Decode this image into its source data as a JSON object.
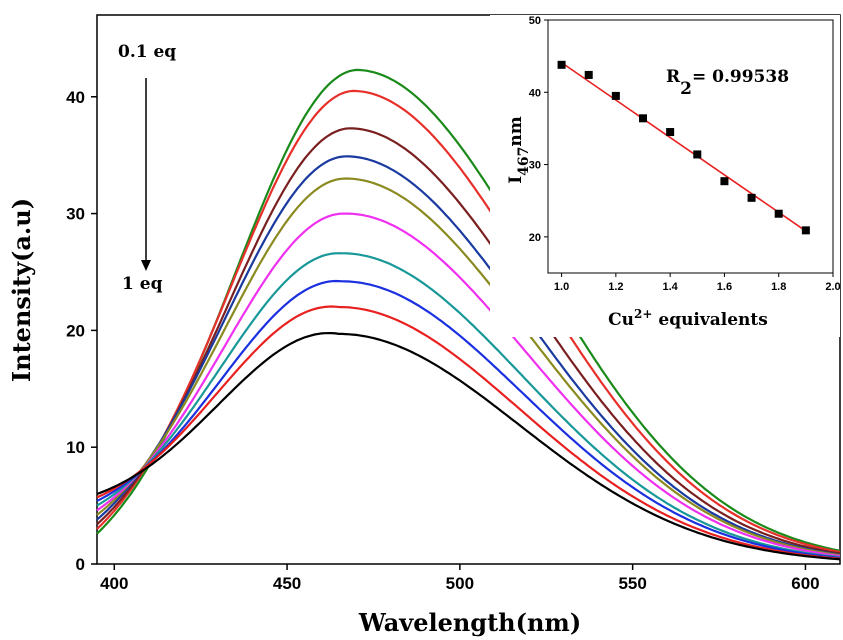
{
  "chart_data": [
    {
      "type": "line",
      "xlabel": "Wavelength(nm)",
      "ylabel": "Intensity(a.u)",
      "xlim": [
        395,
        610
      ],
      "ylim": [
        0,
        47
      ],
      "xticks": [
        400,
        450,
        500,
        550,
        600
      ],
      "yticks": [
        0,
        10,
        20,
        30,
        40
      ],
      "grid": false,
      "annotations": {
        "start": "0.1 eq",
        "end": "1 eq"
      },
      "series": [
        {
          "color": "#1a8a1a",
          "peak_x": 470,
          "peak_y": 42.3,
          "start_y": 2.6
        },
        {
          "color": "#e8302a",
          "peak_x": 469,
          "peak_y": 40.5,
          "start_y": 3.0
        },
        {
          "color": "#7a1f1f",
          "peak_x": 468,
          "peak_y": 37.3,
          "start_y": 3.4
        },
        {
          "color": "#1a3aa0",
          "peak_x": 467,
          "peak_y": 34.9,
          "start_y": 3.8
        },
        {
          "color": "#8a8a20",
          "peak_x": 467,
          "peak_y": 33.0,
          "start_y": 4.2
        },
        {
          "color": "#f030f0",
          "peak_x": 467,
          "peak_y": 30.0,
          "start_y": 4.6
        },
        {
          "color": "#189898",
          "peak_x": 466,
          "peak_y": 26.6,
          "start_y": 5.0
        },
        {
          "color": "#1a30e0",
          "peak_x": 466,
          "peak_y": 24.2,
          "start_y": 5.4
        },
        {
          "color": "#e82020",
          "peak_x": 465,
          "peak_y": 22.0,
          "start_y": 5.7
        },
        {
          "color": "#000000",
          "peak_x": 465,
          "peak_y": 19.7,
          "start_y": 6.0
        }
      ]
    },
    {
      "type": "scatter",
      "xlabel": "Cu2+ equivalents",
      "ylabel": "I467nm",
      "xlim": [
        0.95,
        2.0
      ],
      "ylim": [
        15,
        50
      ],
      "xticks": [
        "1.0",
        "1.2",
        "1.4",
        "1.6",
        "1.8",
        "2.0"
      ],
      "yticks": [
        "20",
        "30",
        "40",
        "50"
      ],
      "x": [
        1.0,
        1.1,
        1.2,
        1.3,
        1.4,
        1.5,
        1.6,
        1.7,
        1.8,
        1.9
      ],
      "y": [
        43.8,
        42.4,
        39.5,
        36.4,
        34.5,
        31.4,
        27.7,
        25.4,
        23.2,
        20.9
      ],
      "fit_line": {
        "x": [
          1.0,
          1.9
        ],
        "y": [
          44.1,
          20.8
        ],
        "color": "#e82020"
      },
      "annotation": {
        "prefix": "R",
        "sub": "2",
        "value": "= 0.99538"
      }
    }
  ]
}
